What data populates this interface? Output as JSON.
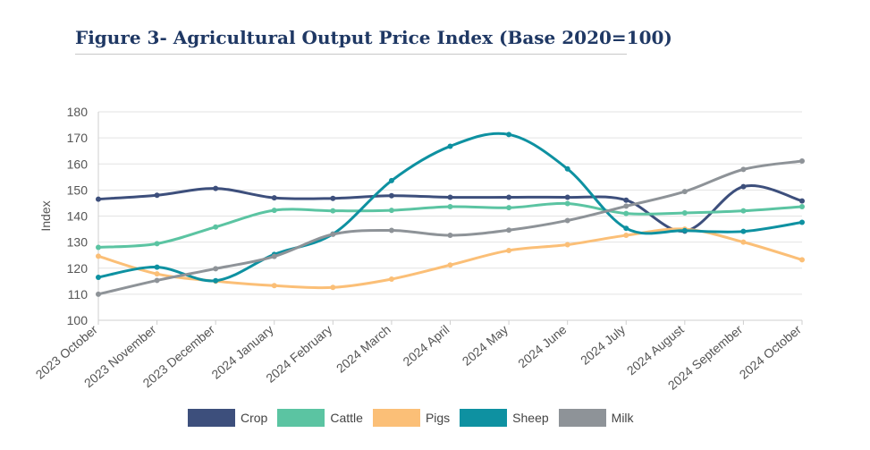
{
  "title": "Figure 3- Agricultural Output Price Index (Base 2020=100)",
  "chart_data": {
    "type": "line",
    "title": "Figure 3- Agricultural Output Price Index (Base 2020=100)",
    "xlabel": "",
    "ylabel": "Index",
    "ylim": [
      100,
      180
    ],
    "yticks": [
      100,
      110,
      120,
      130,
      140,
      150,
      160,
      170,
      180
    ],
    "grid": true,
    "legend_position": "bottom",
    "categories": [
      "2023 October",
      "2023 November",
      "2023 December",
      "2024 January",
      "2024 February",
      "2024 March",
      "2024 April",
      "2024 May",
      "2024 June",
      "2024 July",
      "2024 August",
      "2024 September",
      "2024 October"
    ],
    "series": [
      {
        "name": "Crop",
        "color": "#3d4f7c",
        "values": [
          146.5,
          148,
          150.6,
          147,
          146.8,
          147.8,
          147.2,
          147.2,
          147.2,
          146.1,
          134.2,
          151.3,
          145.8
        ]
      },
      {
        "name": "Cattle",
        "color": "#5bc4a2",
        "values": [
          128,
          129.4,
          135.8,
          142.2,
          142,
          142.2,
          143.6,
          143.2,
          144.8,
          141,
          141.2,
          142,
          143.6
        ]
      },
      {
        "name": "Pigs",
        "color": "#fbbf77",
        "values": [
          124.6,
          117.8,
          115,
          113.3,
          112.6,
          115.8,
          121.2,
          126.8,
          129,
          132.6,
          135,
          130,
          123.2
        ]
      },
      {
        "name": "Sheep",
        "color": "#0e91a1",
        "values": [
          116.5,
          120.4,
          115.2,
          125.3,
          133.1,
          153.6,
          166.8,
          171.3,
          158.1,
          135.3,
          134.4,
          134.1,
          137.6
        ]
      },
      {
        "name": "Milk",
        "color": "#8e9398",
        "values": [
          110,
          115.3,
          119.8,
          124.5,
          133,
          134.5,
          132.6,
          134.6,
          138.3,
          143.8,
          149.4,
          157.9,
          161.1
        ]
      }
    ]
  }
}
